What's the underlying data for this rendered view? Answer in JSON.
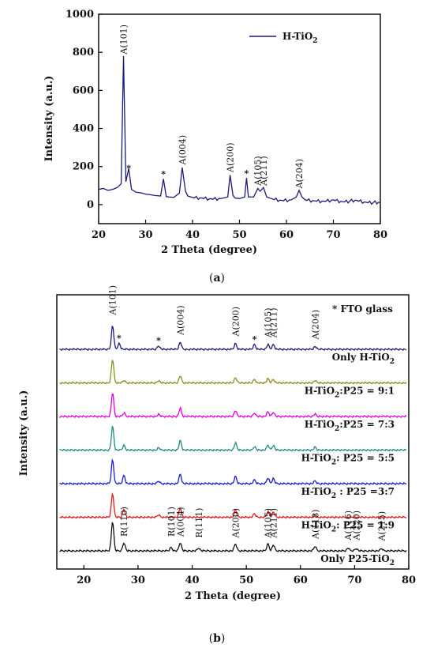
{
  "chart_data": [
    {
      "panel": "a",
      "type": "line",
      "caption_letter": "a",
      "xlabel": "2 Theta (degree)",
      "ylabel": "Intensity (a.u.)",
      "xlim": [
        20,
        80
      ],
      "ylim": [
        -100,
        1000
      ],
      "xticks": [
        20,
        30,
        40,
        50,
        60,
        70,
        80
      ],
      "yticks": [
        0,
        200,
        400,
        600,
        800,
        1000
      ],
      "legend": {
        "label": "H-TiO",
        "sub": "2",
        "color": "#1a1a7a",
        "position": "top-right"
      },
      "series": [
        {
          "name": "H-TiO2",
          "color": "#1a1a7a",
          "points": [
            [
              20,
              80
            ],
            [
              21,
              85
            ],
            [
              22,
              75
            ],
            [
              23,
              80
            ],
            [
              24,
              90
            ],
            [
              24.8,
              110
            ],
            [
              25.3,
              780
            ],
            [
              25.8,
              120
            ],
            [
              26.4,
              190
            ],
            [
              27,
              80
            ],
            [
              28,
              65
            ],
            [
              29,
              62
            ],
            [
              30,
              55
            ],
            [
              31,
              52
            ],
            [
              32,
              48
            ],
            [
              33.2,
              45
            ],
            [
              33.8,
              135
            ],
            [
              34.4,
              42
            ],
            [
              35,
              40
            ],
            [
              36,
              38
            ],
            [
              37.2,
              60
            ],
            [
              37.8,
              195
            ],
            [
              38.5,
              70
            ],
            [
              39,
              45
            ],
            [
              40,
              38
            ],
            [
              42,
              35
            ],
            [
              44,
              30
            ],
            [
              46,
              32
            ],
            [
              47.5,
              40
            ],
            [
              48,
              155
            ],
            [
              48.6,
              50
            ],
            [
              49,
              35
            ],
            [
              50,
              32
            ],
            [
              51.1,
              40
            ],
            [
              51.5,
              140
            ],
            [
              51.9,
              40
            ],
            [
              53,
              40
            ],
            [
              53.9,
              85
            ],
            [
              54.4,
              70
            ],
            [
              55.1,
              90
            ],
            [
              55.8,
              40
            ],
            [
              57,
              30
            ],
            [
              59,
              22
            ],
            [
              61,
              25
            ],
            [
              62.1,
              40
            ],
            [
              62.7,
              75
            ],
            [
              63.3,
              40
            ],
            [
              64,
              25
            ],
            [
              66,
              20
            ],
            [
              68,
              18
            ],
            [
              70,
              25
            ],
            [
              72,
              15
            ],
            [
              75,
              22
            ],
            [
              77,
              12
            ],
            [
              80,
              10
            ]
          ]
        }
      ],
      "annotations": [
        {
          "text": "A(101)",
          "x": 25.3,
          "y": 790,
          "vertical": true
        },
        {
          "text": "*",
          "x": 26.4,
          "y": 200,
          "vertical": false
        },
        {
          "text": "*",
          "x": 33.8,
          "y": 170,
          "vertical": false
        },
        {
          "text": "A(004)",
          "x": 37.8,
          "y": 210,
          "vertical": true
        },
        {
          "text": "A(200)",
          "x": 48,
          "y": 170,
          "vertical": true
        },
        {
          "text": "*",
          "x": 51.5,
          "y": 175,
          "vertical": false
        },
        {
          "text": "A(105)",
          "x": 53.9,
          "y": 100,
          "vertical": true
        },
        {
          "text": "A(211)",
          "x": 55.1,
          "y": 100,
          "vertical": true
        },
        {
          "text": "A(204)",
          "x": 62.7,
          "y": 85,
          "vertical": true
        }
      ]
    },
    {
      "panel": "b",
      "type": "line",
      "caption_letter": "b",
      "xlabel": "2 Theta (degree)",
      "ylabel": "Intensity (a.u.)",
      "xlim": [
        15,
        80
      ],
      "xticks": [
        20,
        30,
        40,
        50,
        60,
        70,
        80
      ],
      "title_note": "* FTO glass",
      "series": [
        {
          "name": "Only H-TiO2",
          "label_main": "Only H-TiO",
          "label_sub": "2",
          "label_tail": "",
          "color": "#1a1a7a",
          "offset": 6,
          "peaks": [
            [
              25.3,
              1
            ],
            [
              26.5,
              0.25
            ],
            [
              33.8,
              0.15
            ],
            [
              37.8,
              0.3
            ],
            [
              48,
              0.25
            ],
            [
              51.5,
              0.2
            ],
            [
              54,
              0.2
            ],
            [
              55,
              0.2
            ],
            [
              62.7,
              0.12
            ]
          ]
        },
        {
          "name": "H-TiO2:P25 = 9:1",
          "label_main": "H-TiO",
          "label_sub": "2",
          "label_tail": ":P25 = 9:1",
          "color": "#8c8c23",
          "offset": 5,
          "peaks": [
            [
              25.3,
              1
            ],
            [
              27.4,
              0.1
            ],
            [
              33.8,
              0.1
            ],
            [
              37.8,
              0.3
            ],
            [
              48,
              0.22
            ],
            [
              51.5,
              0.15
            ],
            [
              54,
              0.18
            ],
            [
              55,
              0.15
            ],
            [
              62.7,
              0.1
            ]
          ]
        },
        {
          "name": "H-TiO2:P25 = 7:3",
          "label_main": "H-TiO",
          "label_sub": "2",
          "label_tail": ":P25 = 7:3",
          "color": "#e000e0",
          "offset": 4,
          "peaks": [
            [
              25.3,
              1
            ],
            [
              27.4,
              0.15
            ],
            [
              33.8,
              0.1
            ],
            [
              37.8,
              0.35
            ],
            [
              48,
              0.25
            ],
            [
              51.5,
              0.15
            ],
            [
              54,
              0.2
            ],
            [
              55,
              0.18
            ],
            [
              62.7,
              0.1
            ]
          ]
        },
        {
          "name": "H-TiO2: P25 = 5:5",
          "label_main": "H-TiO",
          "label_sub": "2",
          "label_tail": ": P25 = 5:5",
          "color": "#1f8a80",
          "offset": 3,
          "peaks": [
            [
              25.3,
              1
            ],
            [
              27.4,
              0.2
            ],
            [
              33.8,
              0.1
            ],
            [
              37.8,
              0.4
            ],
            [
              48,
              0.3
            ],
            [
              51.5,
              0.15
            ],
            [
              54,
              0.22
            ],
            [
              55,
              0.2
            ],
            [
              62.7,
              0.12
            ]
          ]
        },
        {
          "name": "H-TiO2 : P25 =3:7",
          "label_main": "H-TiO",
          "label_sub": "2",
          "label_tail": " : P25 =3:7",
          "color": "#1a1ad8",
          "offset": 2,
          "peaks": [
            [
              25.3,
              1
            ],
            [
              27.4,
              0.35
            ],
            [
              33.8,
              0.1
            ],
            [
              37.8,
              0.4
            ],
            [
              48,
              0.3
            ],
            [
              51.5,
              0.15
            ],
            [
              54,
              0.25
            ],
            [
              55,
              0.22
            ],
            [
              62.7,
              0.12
            ]
          ]
        },
        {
          "name": "H-TiO2: P25 = 1:9",
          "label_main": "H-TiO",
          "label_sub": "2",
          "label_tail": ": P25 = 1:9",
          "color": "#e01a1a",
          "offset": 1,
          "peaks": [
            [
              25.3,
              1
            ],
            [
              27.4,
              0.35
            ],
            [
              33.8,
              0.1
            ],
            [
              37.8,
              0.4
            ],
            [
              48,
              0.3
            ],
            [
              51.5,
              0.15
            ],
            [
              54,
              0.25
            ],
            [
              55,
              0.22
            ],
            [
              62.7,
              0.12
            ]
          ]
        },
        {
          "name": "Only P25-TiO2",
          "label_main": "Only P25-TiO",
          "label_sub": "2",
          "label_tail": "",
          "color": "#111111",
          "offset": 0,
          "peaks": [
            [
              25.3,
              1.25
            ],
            [
              27.4,
              0.35
            ],
            [
              36.1,
              0.15
            ],
            [
              37.8,
              0.35
            ],
            [
              41.2,
              0.12
            ],
            [
              48,
              0.3
            ],
            [
              54,
              0.3
            ],
            [
              55,
              0.25
            ],
            [
              62.7,
              0.2
            ],
            [
              68.8,
              0.12
            ],
            [
              70.3,
              0.1
            ],
            [
              75,
              0.1
            ]
          ]
        }
      ],
      "annotations": [
        {
          "text": "A(101)",
          "x": 25.3,
          "row": 6,
          "level": 1.45,
          "vertical": true
        },
        {
          "text": "*",
          "x": 26.5,
          "row": 6,
          "level": 0.55,
          "vertical": false
        },
        {
          "text": "*",
          "x": 33.8,
          "row": 6,
          "level": 0.45,
          "vertical": false
        },
        {
          "text": "A(004)",
          "x": 37.8,
          "row": 6,
          "level": 0.6,
          "vertical": true
        },
        {
          "text": "A(200)",
          "x": 48,
          "row": 6,
          "level": 0.55,
          "vertical": true
        },
        {
          "text": "*",
          "x": 51.5,
          "row": 6,
          "level": 0.5,
          "vertical": false
        },
        {
          "text": "A(105)",
          "x": 54,
          "row": 6,
          "level": 0.5,
          "vertical": true
        },
        {
          "text": "A(211)",
          "x": 55,
          "row": 6,
          "level": 0.5,
          "vertical": true
        },
        {
          "text": "A(204)",
          "x": 62.7,
          "row": 6,
          "level": 0.42,
          "vertical": true
        },
        {
          "text": "R(110)",
          "x": 27.4,
          "row": 0,
          "level": 0.6,
          "vertical": true
        },
        {
          "text": "R(101)",
          "x": 36.1,
          "row": 0,
          "level": 0.6,
          "vertical": true
        },
        {
          "text": "A(004)",
          "x": 37.8,
          "row": 0,
          "level": 0.6,
          "vertical": true
        },
        {
          "text": "R(111)",
          "x": 41.2,
          "row": 0,
          "level": 0.55,
          "vertical": true
        },
        {
          "text": "A(200)",
          "x": 48,
          "row": 0,
          "level": 0.55,
          "vertical": true
        },
        {
          "text": "A(105)",
          "x": 54,
          "row": 0,
          "level": 0.55,
          "vertical": true
        },
        {
          "text": "A(211)",
          "x": 55,
          "row": 0,
          "level": 0.55,
          "vertical": true
        },
        {
          "text": "A(118)",
          "x": 62.7,
          "row": 0,
          "level": 0.5,
          "vertical": true
        },
        {
          "text": "A(116)",
          "x": 68.8,
          "row": 0,
          "level": 0.45,
          "vertical": true
        },
        {
          "text": "A(220)",
          "x": 70.3,
          "row": 0,
          "level": 0.45,
          "vertical": true
        },
        {
          "text": "A(215)",
          "x": 75,
          "row": 0,
          "level": 0.42,
          "vertical": true
        }
      ]
    }
  ]
}
